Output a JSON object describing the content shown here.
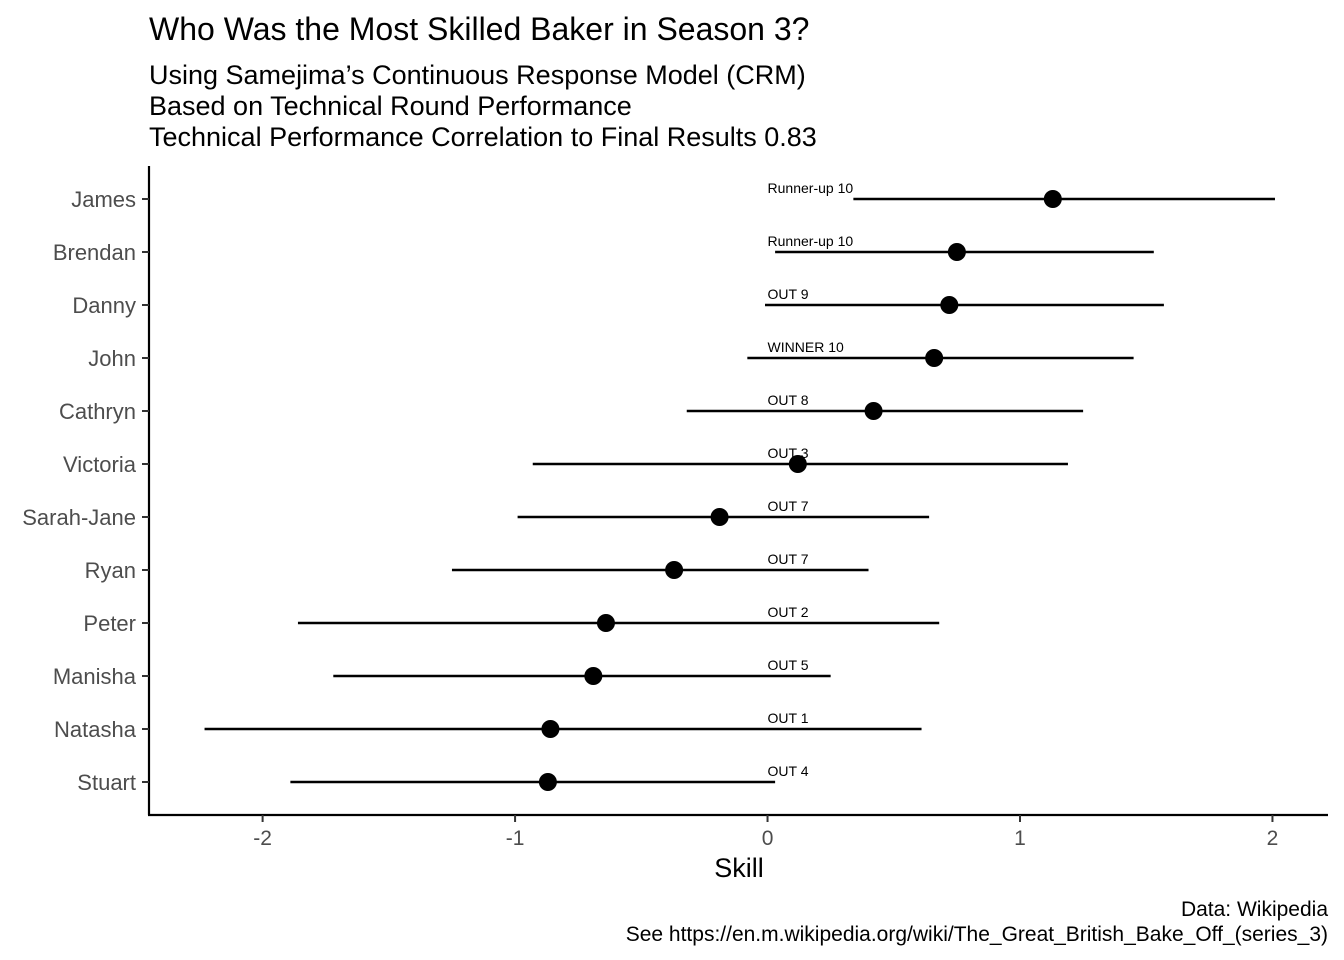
{
  "chart_data": {
    "type": "scatter",
    "title": "Who Was the Most Skilled Baker in Season 3?",
    "subtitle": [
      "Using Samejima’s Continuous Response Model (CRM)",
      "Based on Technical Round Performance",
      "Technical Performance Correlation to Final Results 0.83"
    ],
    "xlabel": "Skill",
    "ylabel": "",
    "xlim": [
      -2.45,
      2.22
    ],
    "xticks": [
      -2,
      -1,
      0,
      1,
      2
    ],
    "xtick_labels": [
      "-2",
      "-1",
      "0",
      "1",
      "2"
    ],
    "label_anchor_x": 0,
    "grid": false,
    "legend": "none",
    "caption": [
      "Data: Wikipedia",
      "See https://en.m.wikipedia.org/wiki/The_Great_British_Bake_Off_(series_3)"
    ],
    "points": [
      {
        "name": "James",
        "skill": 1.13,
        "lower": 0.34,
        "upper": 2.01,
        "label": "Runner-up 10"
      },
      {
        "name": "Brendan",
        "skill": 0.75,
        "lower": 0.03,
        "upper": 1.53,
        "label": "Runner-up 10"
      },
      {
        "name": "Danny",
        "skill": 0.72,
        "lower": -0.01,
        "upper": 1.57,
        "label": "OUT 9"
      },
      {
        "name": "John",
        "skill": 0.66,
        "lower": -0.08,
        "upper": 1.45,
        "label": "WINNER 10"
      },
      {
        "name": "Cathryn",
        "skill": 0.42,
        "lower": -0.32,
        "upper": 1.25,
        "label": "OUT 8"
      },
      {
        "name": "Victoria",
        "skill": 0.12,
        "lower": -0.93,
        "upper": 1.19,
        "label": "OUT 3"
      },
      {
        "name": "Sarah-Jane",
        "skill": -0.19,
        "lower": -0.99,
        "upper": 0.64,
        "label": "OUT 7"
      },
      {
        "name": "Ryan",
        "skill": -0.37,
        "lower": -1.25,
        "upper": 0.4,
        "label": "OUT 7"
      },
      {
        "name": "Peter",
        "skill": -0.64,
        "lower": -1.86,
        "upper": 0.68,
        "label": "OUT 2"
      },
      {
        "name": "Manisha",
        "skill": -0.69,
        "lower": -1.72,
        "upper": 0.25,
        "label": "OUT 5"
      },
      {
        "name": "Natasha",
        "skill": -0.86,
        "lower": -2.23,
        "upper": 0.61,
        "label": "OUT 1"
      },
      {
        "name": "Stuart",
        "skill": -0.87,
        "lower": -1.89,
        "upper": 0.03,
        "label": "OUT 4"
      }
    ]
  }
}
